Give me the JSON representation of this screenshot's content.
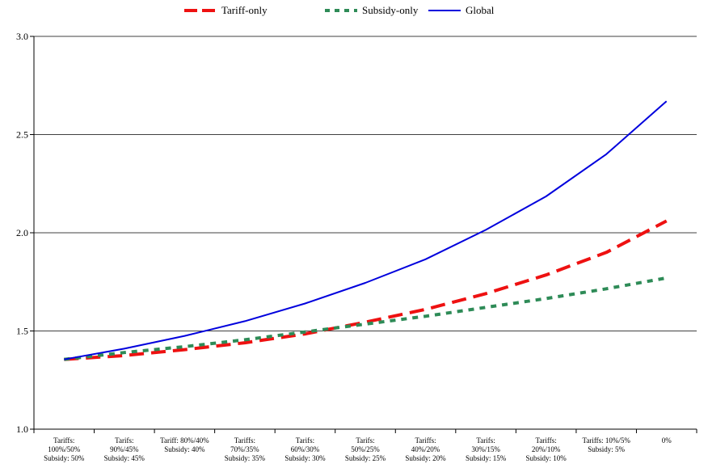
{
  "chart_data": {
    "type": "line",
    "title": "",
    "xlabel": "",
    "ylabel": "",
    "ylim": [
      1.0,
      3.0
    ],
    "yticks": [
      "1.0",
      "1.5",
      "2.0",
      "2.5",
      "3.0"
    ],
    "grid": "horizontal",
    "legend_position": "top",
    "categories": [
      [
        "Tariffs:",
        "100%/50%",
        "Subsidy: 50%"
      ],
      [
        "Tarifs:",
        "90%/45%",
        "Subsidy: 45%"
      ],
      [
        "Tariff: 80%/40%",
        "Subsidy: 40%"
      ],
      [
        "Tariffs:",
        "70%/35%",
        "Subsidy: 35%"
      ],
      [
        "Tarifs:",
        "60%/30%",
        "Subsidy: 30%"
      ],
      [
        "Tarifs:",
        "50%/25%",
        "Subsidy: 25%"
      ],
      [
        "Tariffs:",
        "40%/20%",
        "Subsidy: 20%"
      ],
      [
        "Tarifs:",
        "30%/15%",
        "Subsidy: 15%"
      ],
      [
        "Tariffs:",
        "20%/10%",
        "Subsidy: 10%"
      ],
      [
        "Tariffs: 10%/5%",
        "Subsidy: 5%"
      ],
      [
        "0%"
      ]
    ],
    "series": [
      {
        "name": "Tariff-only",
        "color": "#ee1111",
        "style": "dashed",
        "values": [
          1.355,
          1.375,
          1.405,
          1.44,
          1.485,
          1.545,
          1.61,
          1.69,
          1.785,
          1.9,
          2.06
        ]
      },
      {
        "name": "Subsidy-only",
        "color": "#2e8b57",
        "style": "dotted",
        "values": [
          1.355,
          1.39,
          1.42,
          1.455,
          1.495,
          1.535,
          1.575,
          1.62,
          1.665,
          1.715,
          1.77
        ]
      },
      {
        "name": "Global",
        "color": "#0000dd",
        "style": "solid",
        "values": [
          1.355,
          1.41,
          1.475,
          1.55,
          1.64,
          1.745,
          1.865,
          2.015,
          2.185,
          2.4,
          2.67
        ]
      }
    ]
  }
}
